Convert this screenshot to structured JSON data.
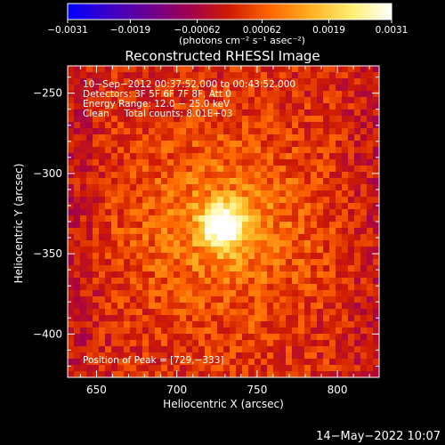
{
  "chart_data": {
    "type": "heatmap",
    "title": "Reconstructed RHESSI Image",
    "xlabel": "Heliocentric X (arcsec)",
    "ylabel": "Heliocentric Y (arcsec)",
    "xlim": [
      632,
      826
    ],
    "ylim": [
      -427,
      -233
    ],
    "x_ticks": [
      650,
      700,
      750,
      800
    ],
    "x_tick_labels": [
      "650",
      "700",
      "750",
      "800"
    ],
    "y_ticks": [
      -250,
      -300,
      -350,
      -400
    ],
    "y_tick_labels": [
      "−250",
      "−300",
      "−350",
      "−400"
    ],
    "colorbar": {
      "min": -0.0031,
      "max": 0.0031,
      "ticks": [
        -0.0031,
        -0.0019,
        -0.00062,
        0.00062,
        0.0019,
        0.0031
      ],
      "tick_labels": [
        "−0.0031",
        "−0.0019",
        "−0.00062",
        "0.00062",
        "0.0019",
        "0.0031"
      ],
      "units_label": "(photons cm⁻² s⁻¹ asec⁻²)",
      "colormap": [
        "#0000ff",
        "#3a00c8",
        "#6a0090",
        "#a10050",
        "#d01c00",
        "#ff6600",
        "#ffb020",
        "#ffee70",
        "#ffffff"
      ]
    },
    "annotations": [
      "10−Sep−2012 00:37:52.000 to 00:43:52.000",
      "Detectors: 3F 5F 6F 7F 8F, Att 0",
      "Energy Range: 12.0 − 25.0 keV",
      "Clean     Total counts: 8.01E+03"
    ],
    "peak_label": "Position of Peak = [729,−333]",
    "peak": {
      "x": 729,
      "y": -333
    },
    "source_sigma_arcsec": 9,
    "background_level": 0.00035,
    "grid": false
  },
  "footer_date": "14−May−2022 10:07"
}
